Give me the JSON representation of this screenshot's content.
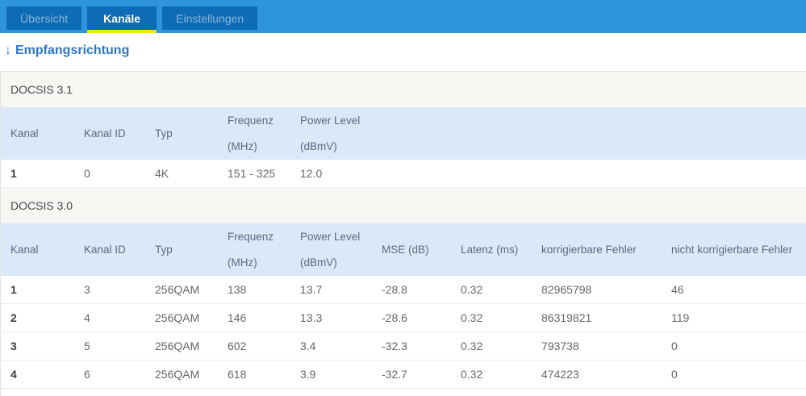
{
  "colors": {
    "tabbar_background": "#2e94db",
    "tab_background": "#0d6cb5",
    "tab_active_underline": "#f0e515",
    "tab_inactive_text": "#8ab4d9",
    "tab_active_text": "#ffffff",
    "heading_text": "#2e76c7",
    "section_title_background": "#f7f6f3",
    "table_header_background": "#d9e9f7",
    "table_header_text": "#5d6b78",
    "cell_text": "#666666",
    "first_column_text": "#3d3d3d"
  },
  "tabs": [
    {
      "label": "Übersicht",
      "active": false
    },
    {
      "label": "Kanäle",
      "active": true
    },
    {
      "label": "Einstellungen",
      "active": false
    }
  ],
  "heading": {
    "arrow": "↓",
    "label": "Empfangsrichtung"
  },
  "docsis31": {
    "title": "DOCSIS 3.1",
    "headers": [
      {
        "l1": "Kanal"
      },
      {
        "l1": "Kanal ID"
      },
      {
        "l1": "Typ"
      },
      {
        "l1": "Frequenz",
        "l2": "(MHz)"
      },
      {
        "l1": "Power Level",
        "l2": "(dBmV)"
      }
    ],
    "rows": [
      [
        "1",
        "0",
        "4K",
        "151 - 325",
        "12.0"
      ]
    ]
  },
  "docsis30": {
    "title": "DOCSIS 3.0",
    "headers": [
      {
        "l1": "Kanal"
      },
      {
        "l1": "Kanal ID"
      },
      {
        "l1": "Typ"
      },
      {
        "l1": "Frequenz",
        "l2": "(MHz)"
      },
      {
        "l1": "Power Level",
        "l2": "(dBmV)"
      },
      {
        "l1": "MSE (dB)"
      },
      {
        "l1": "Latenz (ms)"
      },
      {
        "l1": "korrigierbare Fehler"
      },
      {
        "l1": "nicht korrigierbare Fehler"
      }
    ],
    "rows": [
      [
        "1",
        "3",
        "256QAM",
        "138",
        "13.7",
        "-28.8",
        "0.32",
        "82965798",
        "46"
      ],
      [
        "2",
        "4",
        "256QAM",
        "146",
        "13.3",
        "-28.6",
        "0.32",
        "86319821",
        "119"
      ],
      [
        "3",
        "5",
        "256QAM",
        "602",
        "3.4",
        "-32.3",
        "0.32",
        "793738",
        "0"
      ],
      [
        "4",
        "6",
        "256QAM",
        "618",
        "3.9",
        "-32.7",
        "0.32",
        "474223",
        "0"
      ]
    ]
  }
}
